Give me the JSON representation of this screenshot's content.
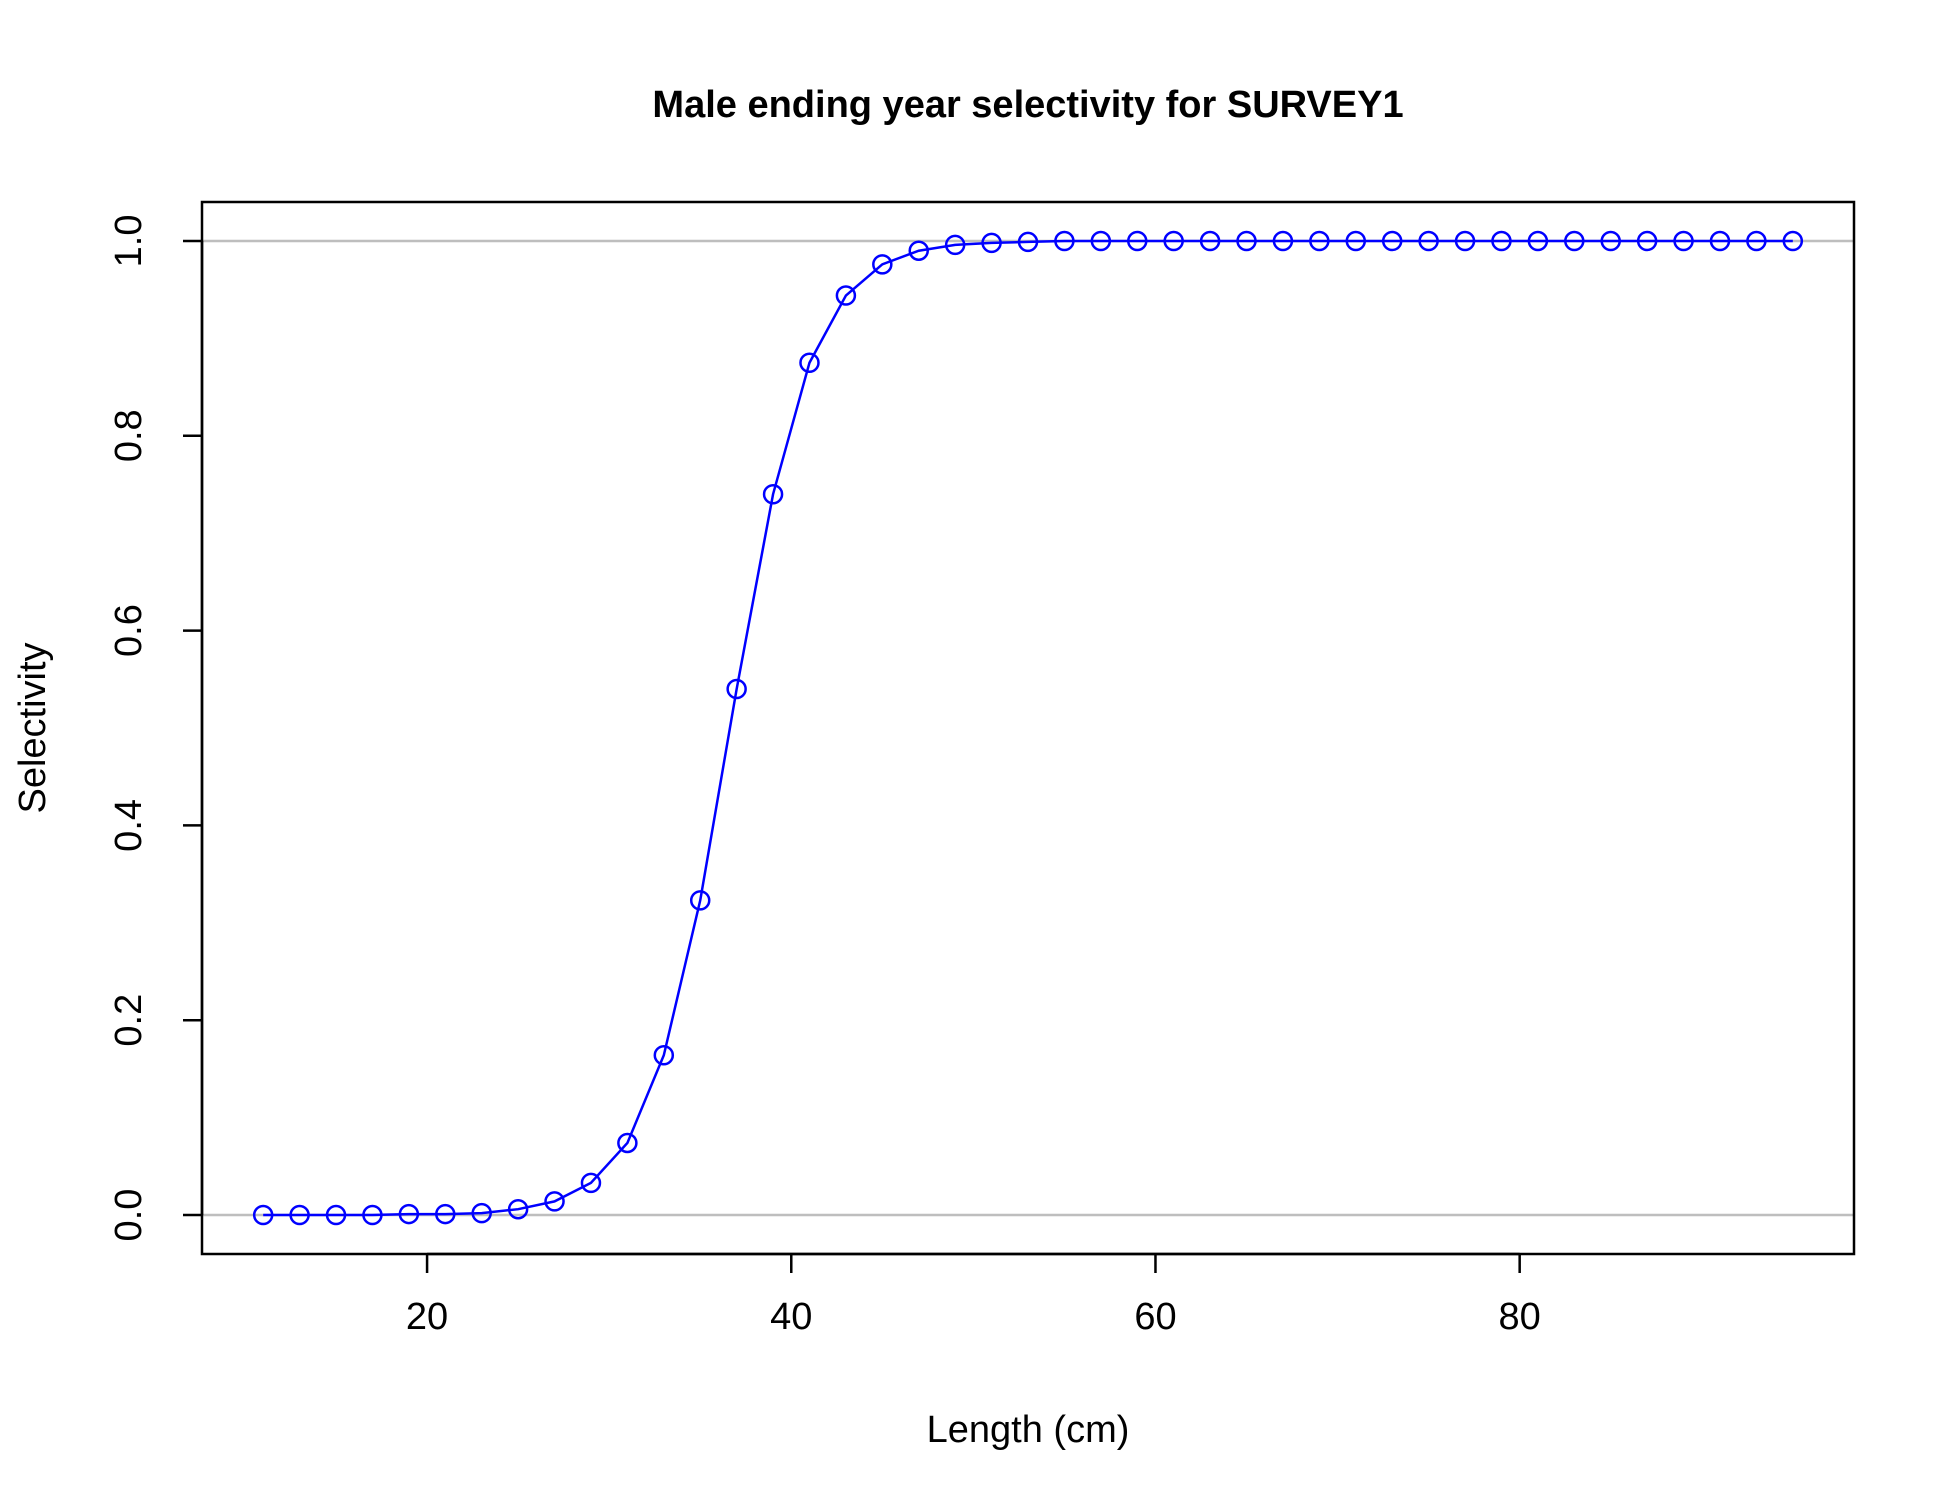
{
  "chart_data": {
    "type": "line",
    "title": "Male ending year selectivity for SURVEY1",
    "xlabel": "Length (cm)",
    "ylabel": "Selectivity",
    "xlim": [
      7.64,
      98.36
    ],
    "ylim": [
      -0.04,
      1.04
    ],
    "x_ticks": [
      20,
      40,
      60,
      80
    ],
    "y_ticks": [
      0.0,
      0.2,
      0.4,
      0.6,
      0.8,
      1.0
    ],
    "y_tick_labels": [
      "0.0",
      "0.2",
      "0.4",
      "0.6",
      "0.8",
      "1.0"
    ],
    "reference_lines_y": [
      0,
      1
    ],
    "reference_line_color": "#bebebe",
    "series_color": "#0000ff",
    "marker": "open-circle",
    "grid": false,
    "series": [
      {
        "x": [
          11,
          13,
          15,
          17,
          19,
          21,
          23,
          25,
          27,
          29,
          31,
          33,
          35,
          37,
          39,
          41,
          43,
          45,
          47,
          49,
          51,
          53,
          55,
          57,
          59,
          61,
          63,
          65,
          67,
          69,
          71,
          73,
          75,
          77,
          79,
          81,
          83,
          85,
          87,
          89,
          91,
          93,
          95
        ],
        "values": [
          0.0,
          0.0,
          0.0,
          0.0,
          0.001,
          0.001,
          0.002,
          0.006,
          0.014,
          0.033,
          0.074,
          0.164,
          0.323,
          0.54,
          0.74,
          0.875,
          0.944,
          0.976,
          0.99,
          0.996,
          0.998,
          0.999,
          1.0,
          1.0,
          1.0,
          1.0,
          1.0,
          1.0,
          1.0,
          1.0,
          1.0,
          1.0,
          1.0,
          1.0,
          1.0,
          1.0,
          1.0,
          1.0,
          1.0,
          1.0,
          1.0,
          1.0,
          1.0
        ]
      }
    ]
  }
}
